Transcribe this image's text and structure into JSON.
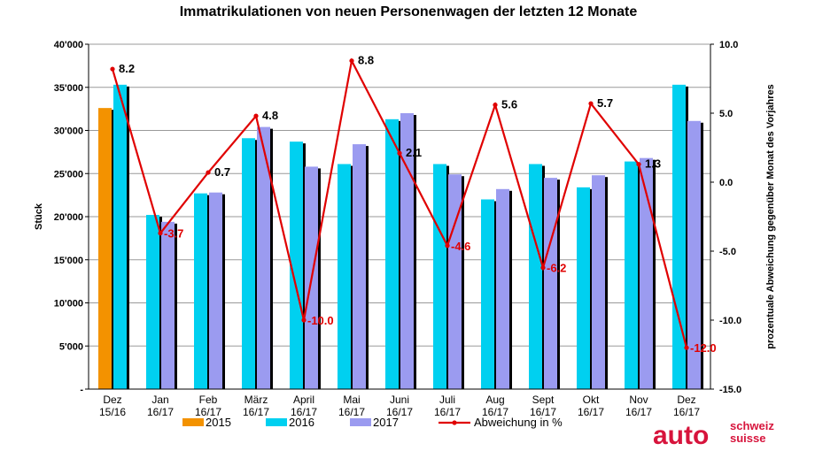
{
  "chart_data": {
    "type": "bar",
    "title": "Immatrikulationen von neuen Personenwagen der letzten 12 Monate",
    "ylabel": "Stück",
    "y2label": "prozentuale Abweichung gegenüber Monat des Vorjahres",
    "ylim": [
      0,
      40000
    ],
    "y2lim": [
      -15,
      10
    ],
    "y_ticks": [
      "-",
      "5'000",
      "10'000",
      "15'000",
      "20'000",
      "25'000",
      "30'000",
      "35'000",
      "40'000"
    ],
    "y_tick_values": [
      0,
      5000,
      10000,
      15000,
      20000,
      25000,
      30000,
      35000,
      40000
    ],
    "y2_ticks": [
      "-15.0",
      "-10.0",
      "-5.0",
      "0.0",
      "5.0",
      "10.0"
    ],
    "y2_tick_values": [
      -15,
      -10,
      -5,
      0,
      5,
      10
    ],
    "categories": [
      [
        "Dez",
        "15/16"
      ],
      [
        "Jan",
        "16/17"
      ],
      [
        "Feb",
        "16/17"
      ],
      [
        "März",
        "16/17"
      ],
      [
        "April",
        "16/17"
      ],
      [
        "Mai",
        "16/17"
      ],
      [
        "Juni",
        "16/17"
      ],
      [
        "Juli",
        "16/17"
      ],
      [
        "Aug",
        "16/17"
      ],
      [
        "Sept",
        "16/17"
      ],
      [
        "Okt",
        "16/17"
      ],
      [
        "Nov",
        "16/17"
      ],
      [
        "Dez",
        "16/17"
      ]
    ],
    "grid": true,
    "legend_position": "bottom",
    "series": [
      {
        "name": "2015",
        "color": "#f39200",
        "values": [
          32600,
          null,
          null,
          null,
          null,
          null,
          null,
          null,
          null,
          null,
          null,
          null,
          null
        ]
      },
      {
        "name": "2016",
        "color": "#00d0f0",
        "values": [
          35300,
          20200,
          22700,
          29100,
          28700,
          26100,
          31300,
          26100,
          22000,
          26100,
          23400,
          26400,
          35300
        ]
      },
      {
        "name": "2017",
        "color": "#9b9bf0",
        "values": [
          null,
          19400,
          22800,
          30400,
          25800,
          28400,
          32000,
          24900,
          23200,
          24500,
          24800,
          26800,
          31100
        ]
      },
      {
        "name": "Abweichung in %",
        "color": "#e00000",
        "type": "line",
        "axis": "right",
        "values": [
          8.2,
          -3.7,
          0.7,
          4.8,
          -10.0,
          8.8,
          2.1,
          -4.6,
          5.6,
          -6.2,
          5.7,
          1.3,
          -12.0
        ],
        "labels": [
          "8.2",
          "-3.7",
          "0.7",
          "4.8",
          "-10.0",
          "8.8",
          "2.1",
          "-4.6",
          "5.6",
          "-6.2",
          "5.7",
          "1.3",
          "-12.0"
        ]
      }
    ]
  },
  "logo": {
    "main": "auto",
    "line1": "schweiz",
    "line2": "suisse"
  }
}
